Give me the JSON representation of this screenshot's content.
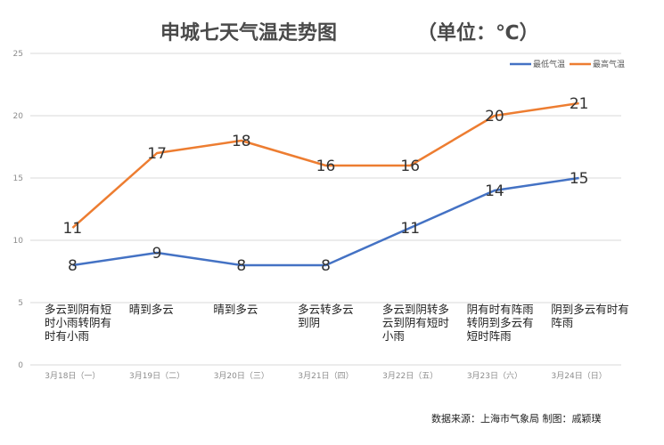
{
  "chart_data": {
    "type": "line",
    "title": "申城七天气温走势图",
    "subtitle": "（单位：℃）",
    "x": [
      "3月18日（一）",
      "3月19日（二）",
      "3月20日（三）",
      "3月21日（四）",
      "3月22日（五）",
      "3月23日（六）",
      "3月24日（日）"
    ],
    "series": [
      {
        "name": "最低气温",
        "values": [
          8,
          9,
          8,
          8,
          11,
          14,
          15
        ],
        "color": "#4472C4"
      },
      {
        "name": "最高气温",
        "values": [
          11,
          17,
          18,
          16,
          16,
          20,
          21
        ],
        "color": "#ED7D31"
      }
    ],
    "yticks": [
      0,
      5,
      10,
      15,
      20,
      25
    ],
    "ylim": [
      0,
      25
    ],
    "grid": true,
    "legend_position": "top-right",
    "weather": [
      [
        "多云到阴有短",
        "时小雨转阴有",
        "时有小雨"
      ],
      [
        "晴到多云"
      ],
      [
        "晴到多云"
      ],
      [
        "多云转多云",
        "到阴"
      ],
      [
        "多云到阴转多",
        "云到阴有短时",
        "小雨"
      ],
      [
        "阴有时有阵雨",
        "转阴到多云有",
        "短时阵雨"
      ],
      [
        "阴到多云有时有",
        "阵雨"
      ]
    ],
    "source": "数据来源：上海市气象局  制图：戚颖璞"
  }
}
